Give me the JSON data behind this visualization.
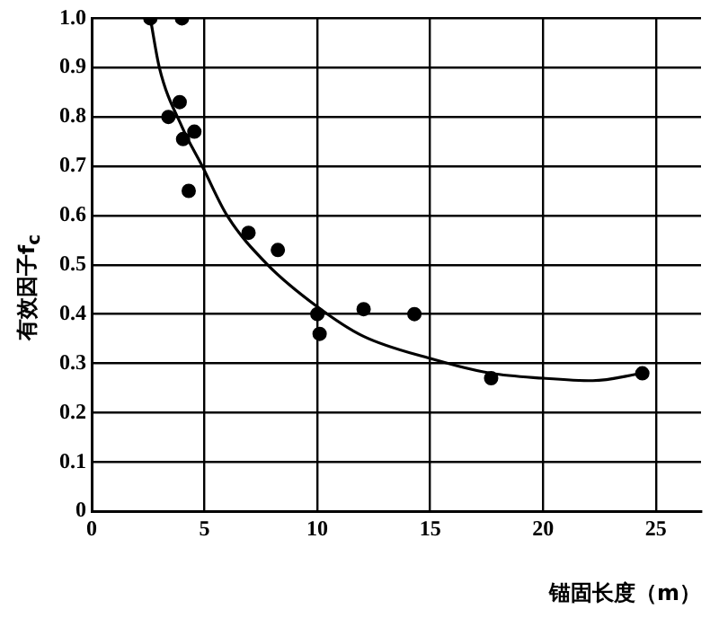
{
  "chart_data": {
    "type": "scatter",
    "xlabel": "锚固长度（m）",
    "ylabel": "有效因子f$_{c}$",
    "xlim": [
      0,
      27
    ],
    "xticks": [
      0,
      5,
      10,
      15,
      20,
      25
    ],
    "ylim": [
      0,
      1
    ],
    "yticks": [
      0,
      0.1,
      0.2,
      0.3,
      0.4,
      0.5,
      0.6,
      0.7,
      0.8,
      0.9,
      {
        "value": 1,
        "label": "1.0"
      }
    ],
    "grid": true,
    "legend": false,
    "marker": "circle",
    "series": [
      {
        "color": "#000000",
        "x": [
          2.6,
          4.0,
          3.4,
          3.9,
          4.05,
          4.55,
          4.3,
          6.95,
          8.25,
          10.0,
          10.1,
          12.05,
          14.3,
          17.7,
          24.4
        ],
        "values": [
          1.0,
          1.0,
          0.8,
          0.83,
          0.755,
          0.77,
          0.65,
          0.565,
          0.53,
          0.4,
          0.36,
          0.41,
          0.4,
          0.27,
          0.28
        ]
      },
      {
        "type": "line",
        "color": "#000000",
        "marker": "none",
        "x": [
          2.6,
          3.0,
          4.0,
          4.9,
          6.0,
          7.8,
          10.0,
          12.0,
          15.0,
          17.7,
          20.0,
          22.2,
          24.4
        ],
        "values": [
          1.0,
          0.9,
          0.78,
          0.7,
          0.6,
          0.5,
          0.415,
          0.356,
          0.31,
          0.28,
          0.27,
          0.265,
          0.28
        ]
      }
    ]
  }
}
